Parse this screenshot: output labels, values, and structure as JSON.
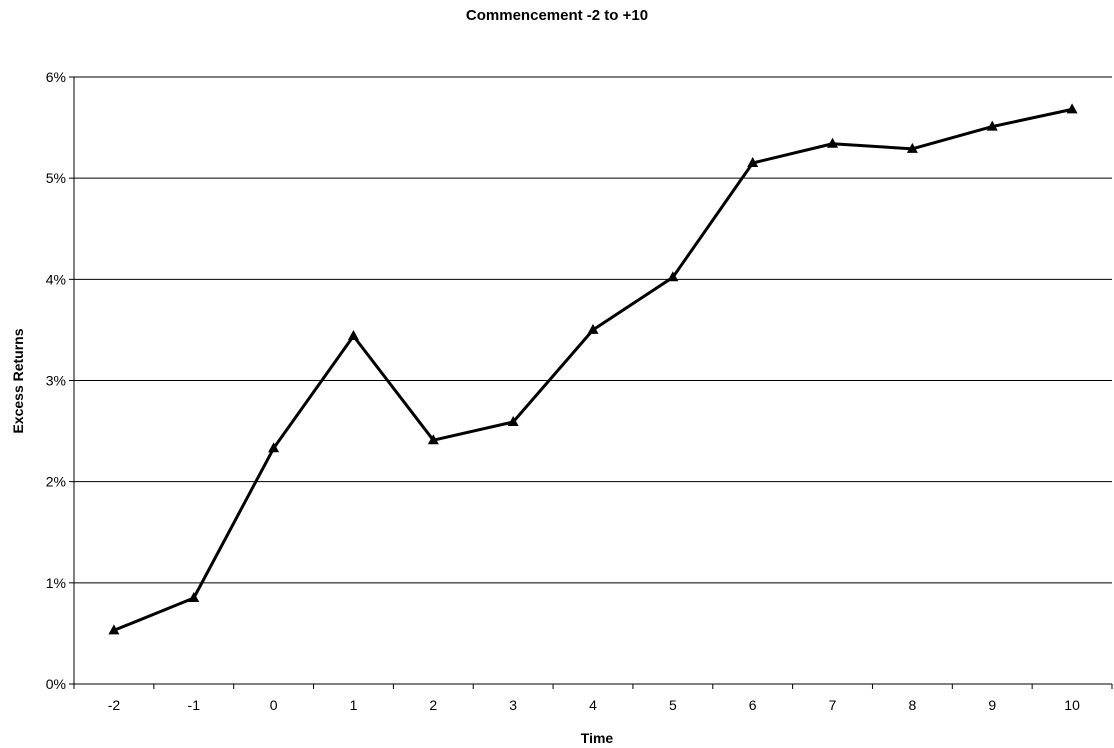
{
  "chart_data": {
    "type": "line",
    "title": "Commencement -2 to +10",
    "xlabel": "Time",
    "ylabel": "Excess Returns",
    "x": [
      -2,
      -1,
      0,
      1,
      2,
      3,
      4,
      5,
      6,
      7,
      8,
      9,
      10
    ],
    "x_tick_labels": [
      "-2",
      "-1",
      "0",
      "1",
      "2",
      "3",
      "4",
      "5",
      "6",
      "7",
      "8",
      "9",
      "10"
    ],
    "y_tick_labels": [
      "0%",
      "1%",
      "2%",
      "3%",
      "4%",
      "5%",
      "6%"
    ],
    "ylim": [
      0,
      6
    ],
    "y_unit": "%",
    "grid": "horizontal",
    "legend": "none",
    "series": [
      {
        "values": [
          0.53,
          0.85,
          2.33,
          3.44,
          2.41,
          2.59,
          3.5,
          4.02,
          5.15,
          5.34,
          5.29,
          5.51,
          5.68
        ],
        "color": "#000000",
        "marker": "triangle"
      }
    ]
  }
}
